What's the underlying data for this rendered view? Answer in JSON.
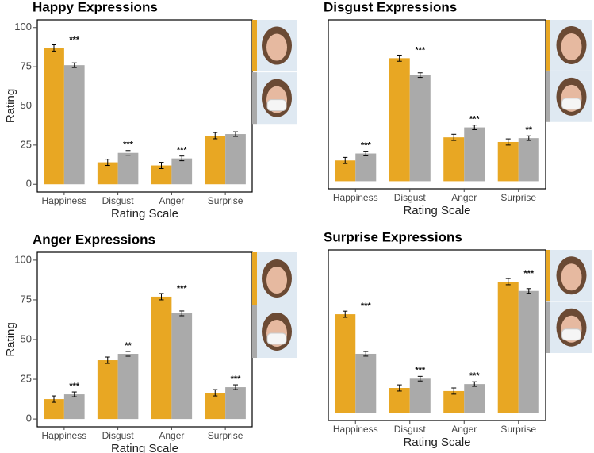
{
  "chart_data": [
    {
      "type": "bar",
      "title": "Happy Expressions",
      "xlabel": "Rating Scale",
      "ylabel": "Rating",
      "categories": [
        "Happiness",
        "Disgust",
        "Anger",
        "Surprise"
      ],
      "series": [
        {
          "color": "#e8a723",
          "values": [
            87,
            14,
            12,
            31
          ],
          "errors": [
            2,
            2,
            2,
            2
          ]
        },
        {
          "color": "#aaaaaa",
          "values": [
            76,
            20,
            16.5,
            32
          ],
          "errors": [
            1.5,
            1.5,
            1.5,
            1.5
          ]
        }
      ],
      "annotations": [
        "***",
        "***",
        "***",
        null
      ],
      "ylim": [
        0,
        100
      ],
      "yticks": [
        0,
        25,
        50,
        75,
        100
      ]
    },
    {
      "type": "bar",
      "title": "Disgust Expressions",
      "xlabel": "Rating Scale",
      "categories": [
        "Happiness",
        "Disgust",
        "Anger",
        "Surprise"
      ],
      "series": [
        {
          "color": "#e8a723",
          "values": [
            13.5,
            80,
            28.5,
            25.5
          ],
          "errors": [
            2,
            2,
            2,
            2
          ]
        },
        {
          "color": "#aaaaaa",
          "values": [
            18,
            69,
            35,
            28
          ],
          "errors": [
            1.5,
            1.5,
            1.5,
            1.5
          ]
        }
      ],
      "annotations": [
        "***",
        "***",
        "***",
        "**"
      ],
      "ylim": [
        0,
        100
      ]
    },
    {
      "type": "bar",
      "title": "Anger Expressions",
      "xlabel": "Rating Scale",
      "ylabel": "Rating",
      "categories": [
        "Happiness",
        "Disgust",
        "Anger",
        "Surprise"
      ],
      "series": [
        {
          "color": "#e8a723",
          "values": [
            12.5,
            37,
            77,
            16.5
          ],
          "errors": [
            2,
            2,
            2,
            2
          ]
        },
        {
          "color": "#aaaaaa",
          "values": [
            15.5,
            41,
            66.5,
            20
          ],
          "errors": [
            1.5,
            1.5,
            1.5,
            1.5
          ]
        }
      ],
      "annotations": [
        "***",
        "**",
        "***",
        "***"
      ],
      "ylim": [
        0,
        100
      ],
      "yticks": [
        0,
        25,
        50,
        75,
        100
      ]
    },
    {
      "type": "bar",
      "title": "Surprise Expressions",
      "xlabel": "Rating Scale",
      "categories": [
        "Happiness",
        "Disgust",
        "Anger",
        "Surprise"
      ],
      "series": [
        {
          "color": "#e8a723",
          "values": [
            63.5,
            16,
            14,
            84.5
          ],
          "errors": [
            2,
            2,
            2,
            2
          ]
        },
        {
          "color": "#aaaaaa",
          "values": [
            38,
            22,
            18.5,
            78.5
          ],
          "errors": [
            1.5,
            1.5,
            1.5,
            1.5
          ]
        }
      ],
      "annotations": [
        "***",
        "***",
        "***",
        "***"
      ],
      "ylim": [
        0,
        100
      ]
    }
  ]
}
